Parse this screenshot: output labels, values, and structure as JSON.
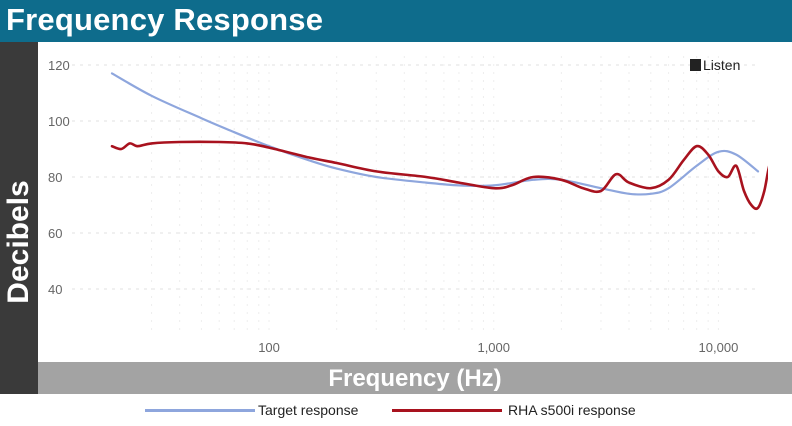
{
  "title": "Frequency Response",
  "y_axis_title": "Decibels",
  "x_axis_title": "Frequency (Hz)",
  "brand": "Listen",
  "colors": {
    "title_bar": "#0e6c8c",
    "y_bar": "#3a3a3a",
    "x_bar": "#a3a3a3",
    "target": "#8ea6dd",
    "device": "#a8121e"
  },
  "chart_data": {
    "type": "line",
    "x_scale": "log",
    "xlim": [
      20,
      20000
    ],
    "ylim": [
      30,
      122
    ],
    "y_ticks": [
      40,
      60,
      80,
      100,
      120
    ],
    "y_tick_labels": [
      "40",
      "60",
      "80",
      "100",
      "120"
    ],
    "x_ticks": [
      100,
      1000,
      10000
    ],
    "x_tick_labels": [
      "100",
      "1,000",
      "10,000"
    ],
    "grid": true,
    "legend_position": "bottom",
    "series": [
      {
        "name": "Target response",
        "x": [
          20,
          30,
          50,
          70,
          100,
          150,
          200,
          300,
          500,
          700,
          1000,
          1500,
          2000,
          3000,
          4000,
          5000,
          6000,
          8000,
          10000,
          12000,
          15000
        ],
        "values": [
          117,
          109,
          101,
          96,
          91,
          86,
          83,
          80,
          78,
          77,
          77,
          79,
          79,
          76,
          74,
          74,
          76,
          84,
          89,
          88,
          82
        ]
      },
      {
        "name": "RHA s500i response",
        "x": [
          20,
          22,
          24,
          26,
          30,
          40,
          60,
          80,
          100,
          150,
          200,
          300,
          500,
          700,
          1000,
          1200,
          1500,
          2000,
          2500,
          3000,
          3500,
          4000,
          5000,
          6000,
          7000,
          8000,
          9000,
          10000,
          11000,
          12000,
          13000,
          14000,
          15000,
          16000,
          17000,
          18000,
          19000,
          20000
        ],
        "values": [
          91,
          90,
          92,
          91,
          92,
          92.5,
          92.5,
          92,
          90.5,
          87,
          85,
          82,
          80,
          78,
          76,
          77,
          80,
          79,
          76,
          75,
          81,
          78,
          76,
          79,
          86,
          91,
          88,
          82,
          80,
          84,
          75,
          70,
          69,
          75,
          85,
          82,
          81,
          80
        ]
      }
    ]
  }
}
